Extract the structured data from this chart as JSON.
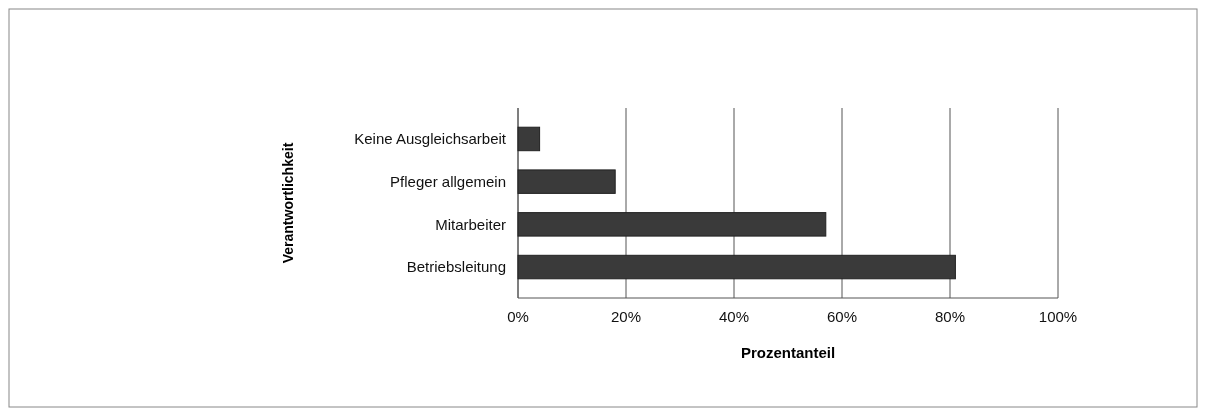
{
  "chart_data": {
    "type": "bar",
    "orientation": "horizontal",
    "ylabel": "Verantwortlichkeit",
    "xlabel": "Prozentanteil",
    "categories": [
      "Keine Ausgleichsarbeit",
      "Pfleger allgemein",
      "Mitarbeiter",
      "Betriebsleitung"
    ],
    "values": [
      4,
      18,
      57,
      81
    ],
    "color": "#3a3a3a",
    "xlim": [
      0,
      100
    ],
    "xticks": [
      {
        "value": 0,
        "label": "0%"
      },
      {
        "value": 20,
        "label": "20%"
      },
      {
        "value": 40,
        "label": "40%"
      },
      {
        "value": 60,
        "label": "60%"
      },
      {
        "value": 80,
        "label": "80%"
      },
      {
        "value": 100,
        "label": "100%"
      }
    ],
    "grid": "x"
  }
}
